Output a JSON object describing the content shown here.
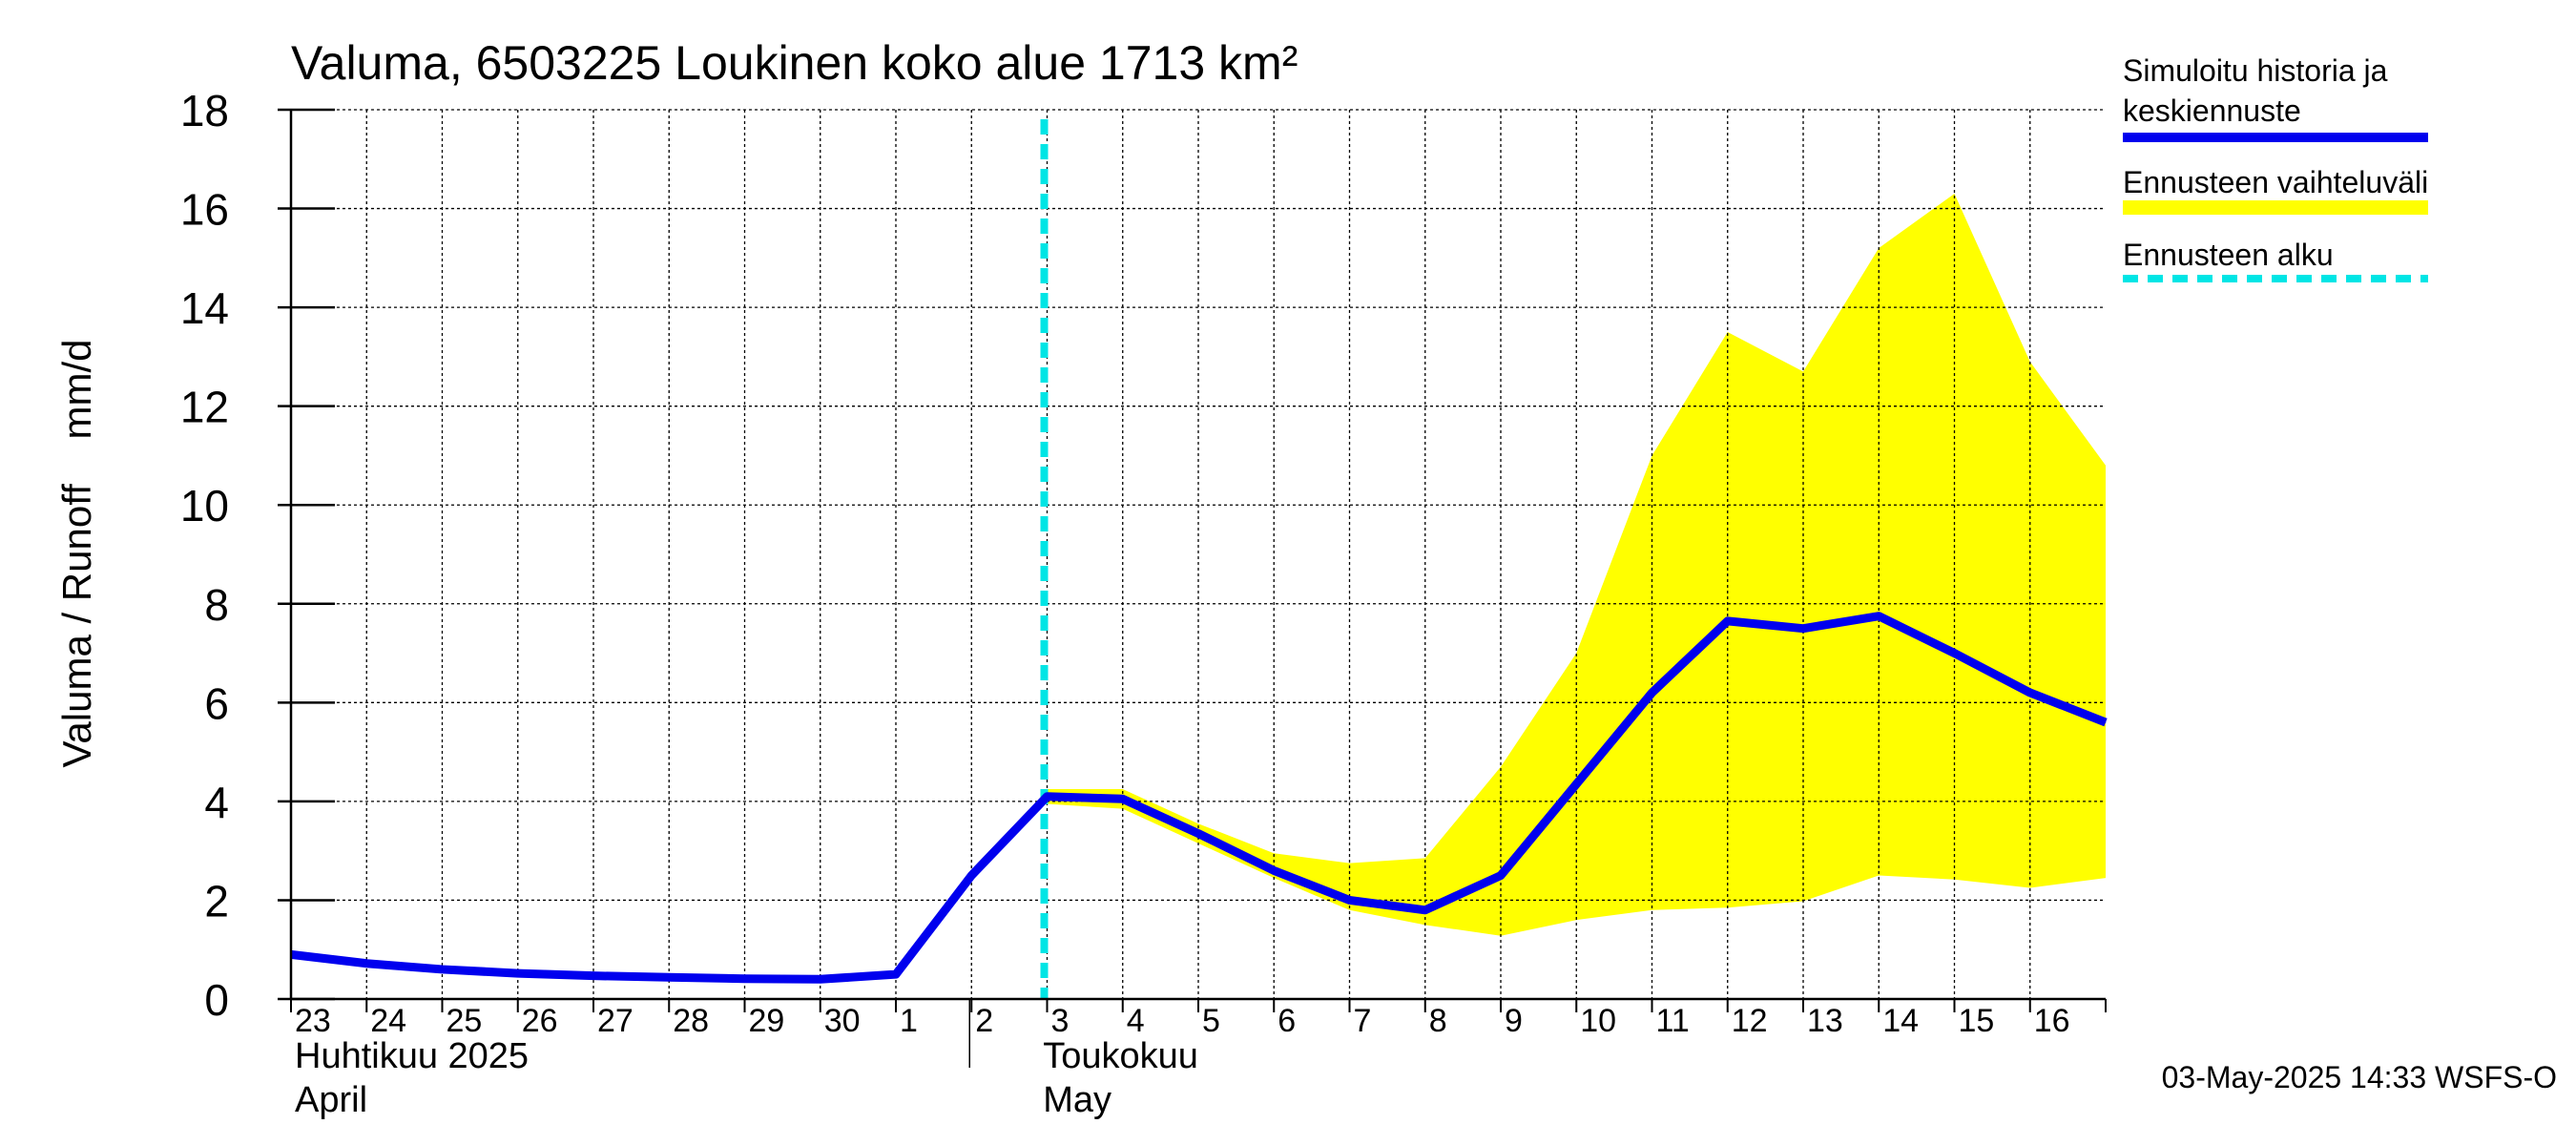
{
  "chart_data": {
    "type": "line",
    "title": "Valuma, 6503225 Loukinen koko alue 1713 km²",
    "ylabel": "Valuma / Runoff    mm/d",
    "ylim": [
      0,
      18
    ],
    "yticks": [
      0,
      2,
      4,
      6,
      8,
      10,
      12,
      14,
      16,
      18
    ],
    "xlim": [
      "2025-04-23",
      "2025-05-17"
    ],
    "x_tick_labels": [
      "23",
      "24",
      "25",
      "26",
      "27",
      "28",
      "29",
      "30",
      "1",
      "2",
      "3",
      "4",
      "5",
      "6",
      "7",
      "8",
      "9",
      "10",
      "11",
      "12",
      "13",
      "14",
      "15",
      "16"
    ],
    "month_labels": [
      {
        "line1": "Huhtikuu  2025",
        "line2": "April",
        "start": "2025-04-23"
      },
      {
        "line1": "Toukokuu",
        "line2": "May",
        "start": "2025-05-02"
      }
    ],
    "grid": true,
    "legend_position": "right",
    "forecast_start": "2025-05-03",
    "series": [
      {
        "name": "Simuloitu historia ja keskiennuste",
        "color": "#0000ee",
        "points": [
          [
            "2025-04-23",
            0.9
          ],
          [
            "2025-04-24",
            0.72
          ],
          [
            "2025-04-25",
            0.6
          ],
          [
            "2025-04-26",
            0.52
          ],
          [
            "2025-04-27",
            0.47
          ],
          [
            "2025-04-28",
            0.44
          ],
          [
            "2025-04-29",
            0.41
          ],
          [
            "2025-04-30",
            0.4
          ],
          [
            "2025-05-01",
            0.5
          ],
          [
            "2025-05-02",
            2.5
          ],
          [
            "2025-05-03",
            4.1
          ],
          [
            "2025-05-04",
            4.05
          ],
          [
            "2025-05-05",
            3.35
          ],
          [
            "2025-05-06",
            2.6
          ],
          [
            "2025-05-07",
            2.0
          ],
          [
            "2025-05-08",
            1.8
          ],
          [
            "2025-05-09",
            2.5
          ],
          [
            "2025-05-10",
            4.35
          ],
          [
            "2025-05-11",
            6.2
          ],
          [
            "2025-05-12",
            7.65
          ],
          [
            "2025-05-13",
            7.5
          ],
          [
            "2025-05-14",
            7.75
          ],
          [
            "2025-05-15",
            7.0
          ],
          [
            "2025-05-16",
            6.2
          ],
          [
            "2025-05-17",
            5.6
          ]
        ]
      },
      {
        "name": "Ennusteen vaihteluväli",
        "color": "#ffff00",
        "upper": [
          [
            "2025-05-03",
            4.25
          ],
          [
            "2025-05-04",
            4.25
          ],
          [
            "2025-05-05",
            3.55
          ],
          [
            "2025-05-06",
            2.95
          ],
          [
            "2025-05-07",
            2.75
          ],
          [
            "2025-05-08",
            2.85
          ],
          [
            "2025-05-09",
            4.7
          ],
          [
            "2025-05-10",
            7.0
          ],
          [
            "2025-05-11",
            11.0
          ],
          [
            "2025-05-12",
            13.5
          ],
          [
            "2025-05-13",
            12.7
          ],
          [
            "2025-05-14",
            15.2
          ],
          [
            "2025-05-15",
            16.3
          ],
          [
            "2025-05-16",
            12.9
          ],
          [
            "2025-05-17",
            10.8
          ]
        ],
        "lower": [
          [
            "2025-05-03",
            3.95
          ],
          [
            "2025-05-04",
            3.85
          ],
          [
            "2025-05-05",
            3.15
          ],
          [
            "2025-05-06",
            2.45
          ],
          [
            "2025-05-07",
            1.8
          ],
          [
            "2025-05-08",
            1.5
          ],
          [
            "2025-05-09",
            1.28
          ],
          [
            "2025-05-10",
            1.6
          ],
          [
            "2025-05-11",
            1.8
          ],
          [
            "2025-05-12",
            1.85
          ],
          [
            "2025-05-13",
            1.98
          ],
          [
            "2025-05-14",
            2.5
          ],
          [
            "2025-05-15",
            2.42
          ],
          [
            "2025-05-16",
            2.25
          ],
          [
            "2025-05-17",
            2.45
          ]
        ]
      },
      {
        "name": "Ennusteen alku",
        "color": "#00e5e5",
        "style": "dashed"
      }
    ],
    "footer": "03-May-2025 14:33 WSFS-O"
  }
}
